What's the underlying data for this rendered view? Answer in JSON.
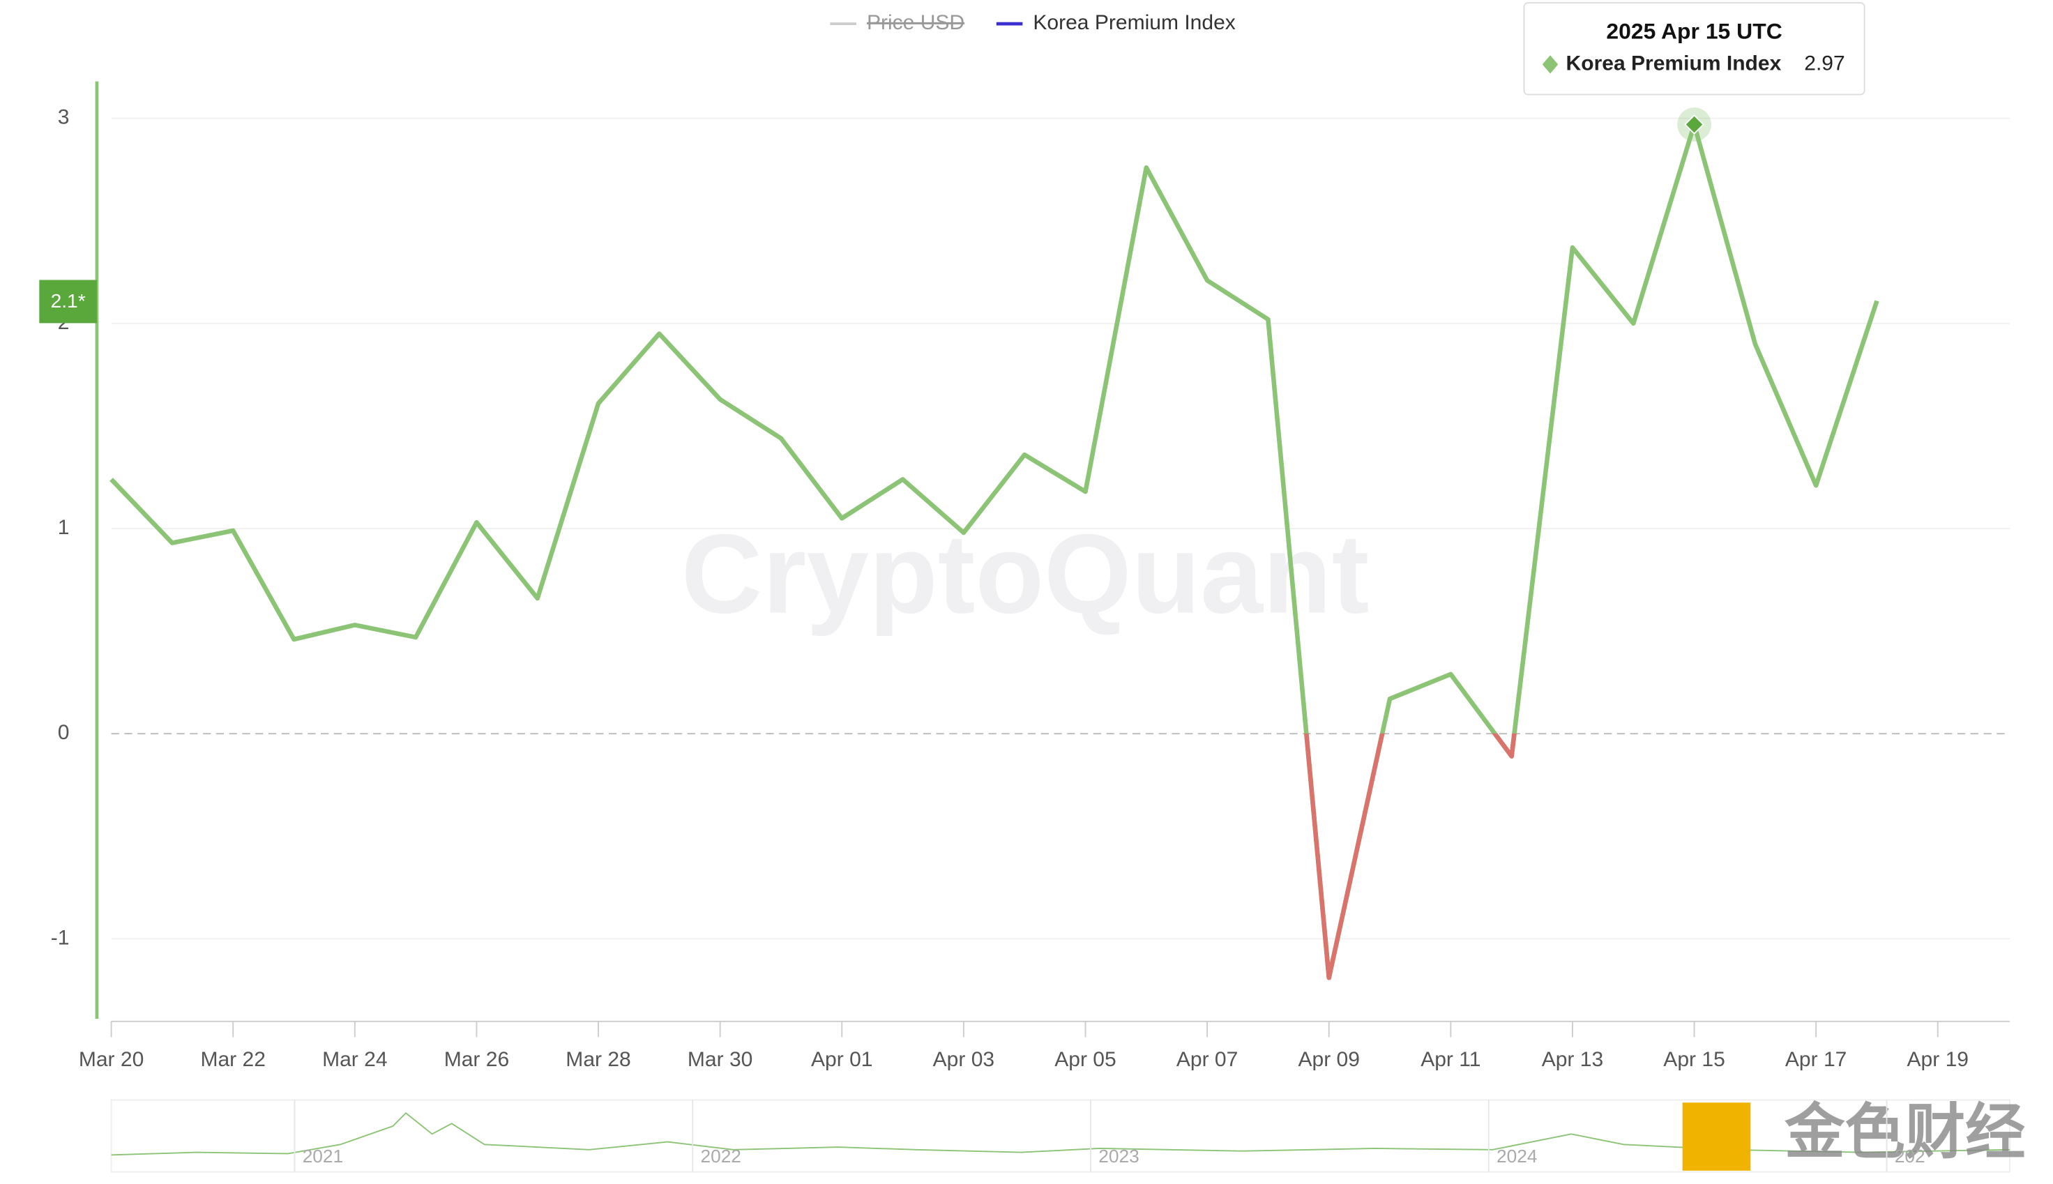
{
  "chart_data": {
    "type": "line",
    "legend": [
      {
        "name": "Price USD",
        "color": "#cccccc",
        "hidden": true
      }
    ],
    "categories": [
      "Mar 20",
      null,
      "Mar 22",
      null,
      "Mar 24",
      null,
      "Mar 26",
      null,
      "Mar 28",
      null,
      "Mar 30",
      null,
      "Apr 01",
      null,
      "Apr 03",
      null,
      "Apr 05",
      null,
      "Apr 07",
      null,
      "Apr 09",
      null,
      "Apr 11",
      null,
      "Apr 13",
      null,
      "Apr 15",
      null,
      "Apr 17",
      null,
      "Apr 19"
    ],
    "series": [
      {
        "name": "Korea Premium Index",
        "legend_color": "#3b2fd1",
        "color": "#8bc474",
        "negative_color": "#d9736b",
        "values": [
          1.24,
          0.93,
          0.99,
          0.46,
          0.53,
          0.47,
          1.03,
          0.66,
          1.61,
          1.95,
          1.63,
          1.44,
          1.05,
          1.24,
          0.98,
          1.36,
          1.18,
          2.76,
          2.21,
          2.02,
          -1.19,
          0.17,
          0.29,
          -0.11,
          2.37,
          2.0,
          2.97,
          1.9,
          1.21,
          2.11,
          null
        ]
      }
    ],
    "ylim": [
      -1.39,
      3.18
    ],
    "yticks": [
      -1,
      0,
      1,
      2,
      3
    ],
    "grid": true,
    "current_label": "2.1*",
    "tooltip": {
      "title": "2025 Apr 15 UTC",
      "index": 26
    },
    "watermark": "CryptoQuant",
    "navigator_labels": [
      "2021",
      "2022",
      "2023",
      "2024",
      "202"
    ],
    "logo_text": "金色财经"
  }
}
